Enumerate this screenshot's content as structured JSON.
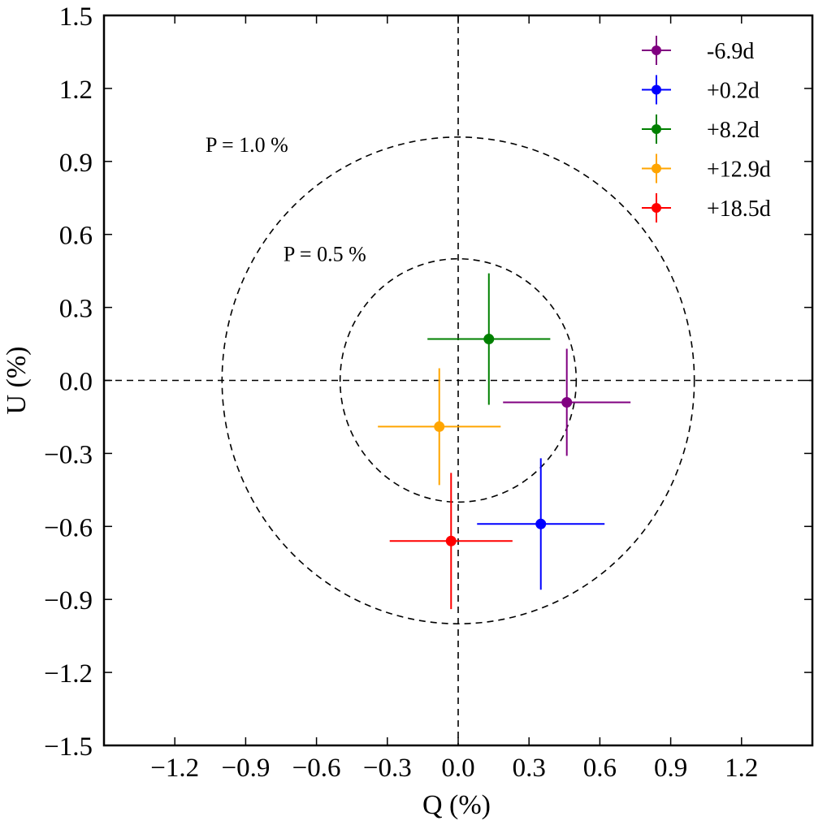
{
  "chart_data": {
    "type": "scatter",
    "xlabel": "Q (%)",
    "ylabel": "U (%)",
    "xlim": [
      -1.5,
      1.5
    ],
    "ylim": [
      -1.5,
      1.5
    ],
    "xticks": [
      -1.2,
      -0.9,
      -0.6,
      -0.3,
      0.0,
      0.3,
      0.6,
      0.9,
      1.2
    ],
    "xtick_labels": [
      "−1.2",
      "−0.9",
      "−0.6",
      "−0.3",
      "0.0",
      "0.3",
      "0.6",
      "0.9",
      "1.2"
    ],
    "yticks": [
      1.5,
      1.2,
      0.9,
      0.6,
      0.3,
      0.0,
      -0.3,
      -0.6,
      -0.9,
      -1.2,
      -1.5
    ],
    "ytick_labels": [
      "1.5",
      "1.2",
      "0.9",
      "0.6",
      "0.3",
      "0.0",
      "−0.3",
      "−0.6",
      "−0.9",
      "−1.2",
      "−1.5"
    ],
    "grid": false,
    "legend_position": "top-right",
    "reference_lines": [
      {
        "orientation": "vertical",
        "value": 0,
        "style": "dashed"
      },
      {
        "orientation": "horizontal",
        "value": 0,
        "style": "dashed"
      }
    ],
    "circles": [
      {
        "radius": 1.0,
        "label": "P = 1.0 %",
        "label_at": [
          -1.07,
          0.94
        ]
      },
      {
        "radius": 0.5,
        "label": "P = 0.5 %",
        "label_at": [
          -0.74,
          0.49
        ]
      }
    ],
    "series": [
      {
        "name": "-6.9d",
        "color": "#800080",
        "q": 0.46,
        "u": -0.09,
        "q_err": 0.27,
        "u_err": 0.22
      },
      {
        "name": "+0.2d",
        "color": "#0000ff",
        "q": 0.35,
        "u": -0.59,
        "q_err": 0.27,
        "u_err": 0.27
      },
      {
        "name": "+8.2d",
        "color": "#008000",
        "q": 0.13,
        "u": 0.17,
        "q_err": 0.26,
        "u_err": 0.27
      },
      {
        "name": "+12.9d",
        "color": "#ffa500",
        "q": -0.08,
        "u": -0.19,
        "q_err": 0.26,
        "u_err": 0.24
      },
      {
        "name": "+18.5d",
        "color": "#ff0000",
        "q": -0.03,
        "u": -0.66,
        "q_err": 0.26,
        "u_err": 0.28
      }
    ]
  }
}
